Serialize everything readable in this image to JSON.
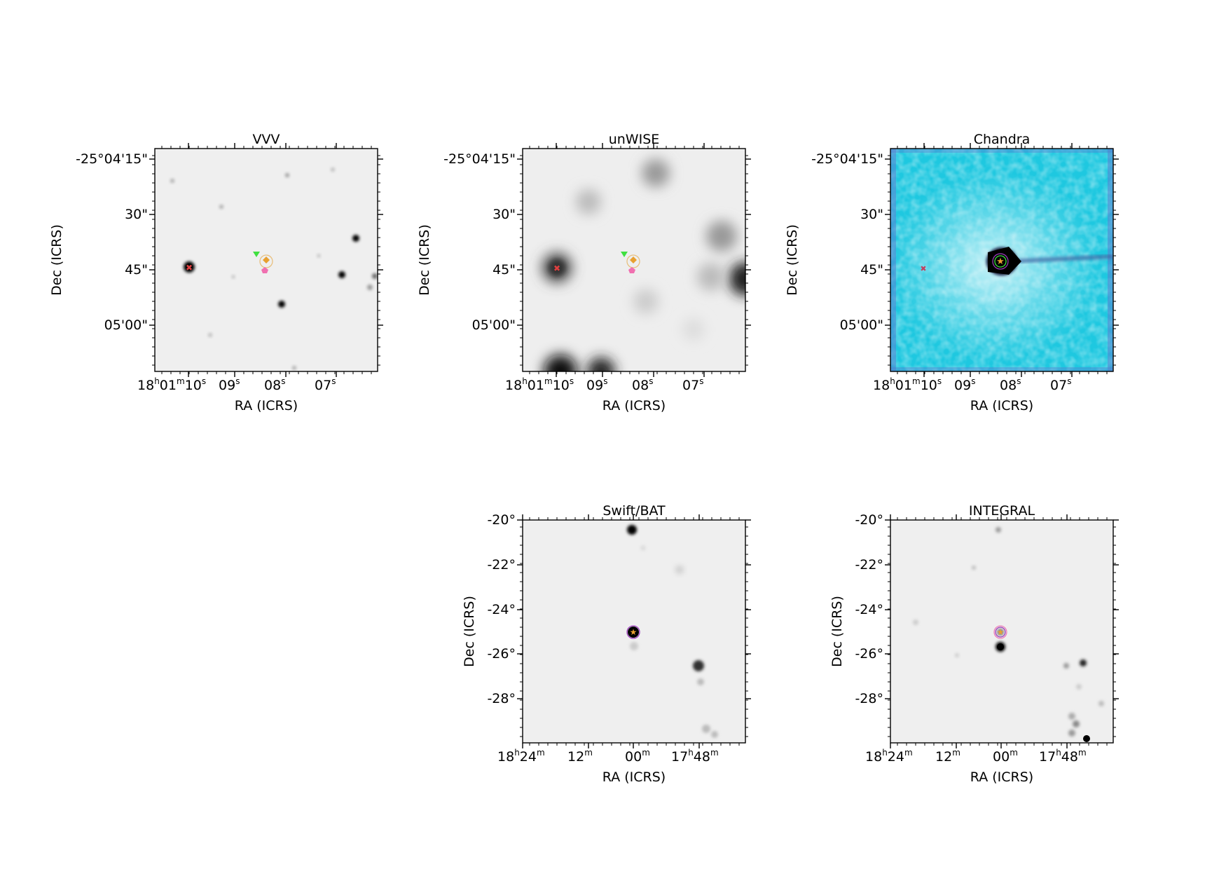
{
  "panels": {
    "vvv": {
      "title": "VVV",
      "xlabel": "RA (ICRS)",
      "ylabel": "Dec (ICRS)",
      "yticks": [
        "-25°04'15\"",
        "30\"",
        "45\"",
        "05'00\""
      ],
      "xticks": [
        {
          "main": "18",
          "s1": "h",
          "m2": "01",
          "s2": "m",
          "m3": "10",
          "s3": "s"
        },
        {
          "main": "09",
          "s1": "s"
        },
        {
          "main": "08",
          "s1": "s"
        },
        {
          "main": "07",
          "s1": "s"
        }
      ]
    },
    "unwise": {
      "title": "unWISE",
      "xlabel": "RA (ICRS)",
      "ylabel": "Dec (ICRS)",
      "yticks": [
        "-25°04'15\"",
        "30\"",
        "45\"",
        "05'00\""
      ],
      "xticks": [
        {
          "main": "18",
          "s1": "h",
          "m2": "01",
          "s2": "m",
          "m3": "10",
          "s3": "s"
        },
        {
          "main": "09",
          "s1": "s"
        },
        {
          "main": "08",
          "s1": "s"
        },
        {
          "main": "07",
          "s1": "s"
        }
      ]
    },
    "chandra": {
      "title": "Chandra",
      "xlabel": "RA (ICRS)",
      "ylabel": "Dec (ICRS)",
      "yticks": [
        "-25°04'15\"",
        "30\"",
        "45\"",
        "05'00\""
      ],
      "xticks": [
        {
          "main": "18",
          "s1": "h",
          "m2": "01",
          "s2": "m",
          "m3": "10",
          "s3": "s"
        },
        {
          "main": "09",
          "s1": "s"
        },
        {
          "main": "08",
          "s1": "s"
        },
        {
          "main": "07",
          "s1": "s"
        }
      ]
    },
    "swift": {
      "title": "Swift/BAT",
      "xlabel": "RA (ICRS)",
      "ylabel": "Dec (ICRS)",
      "yticks": [
        "-20°",
        "-22°",
        "-24°",
        "-26°",
        "-28°"
      ],
      "xticks": [
        {
          "main": "18",
          "s1": "h",
          "m2": "24",
          "s2": "m"
        },
        {
          "main": "12",
          "s1": "m"
        },
        {
          "main": "00",
          "s1": "m"
        },
        {
          "main": "17",
          "s1": "h",
          "m2": "48",
          "s2": "m"
        }
      ]
    },
    "integral": {
      "title": "INTEGRAL",
      "xlabel": "RA (ICRS)",
      "ylabel": "Dec (ICRS)",
      "yticks": [
        "-20°",
        "-22°",
        "-24°",
        "-26°",
        "-28°"
      ],
      "xticks": [
        {
          "main": "18",
          "s1": "h",
          "m2": "24",
          "s2": "m"
        },
        {
          "main": "12",
          "s1": "m"
        },
        {
          "main": "00",
          "s1": "m"
        },
        {
          "main": "17",
          "s1": "h",
          "m2": "48",
          "s2": "m"
        }
      ]
    }
  },
  "colors": {
    "chandra_background": "#1ec8e0",
    "marker_orange": "#e8a030",
    "marker_green": "#40e040",
    "marker_pink": "#f070b0",
    "marker_red": "#e04040",
    "marker_purple": "#a040c0"
  }
}
